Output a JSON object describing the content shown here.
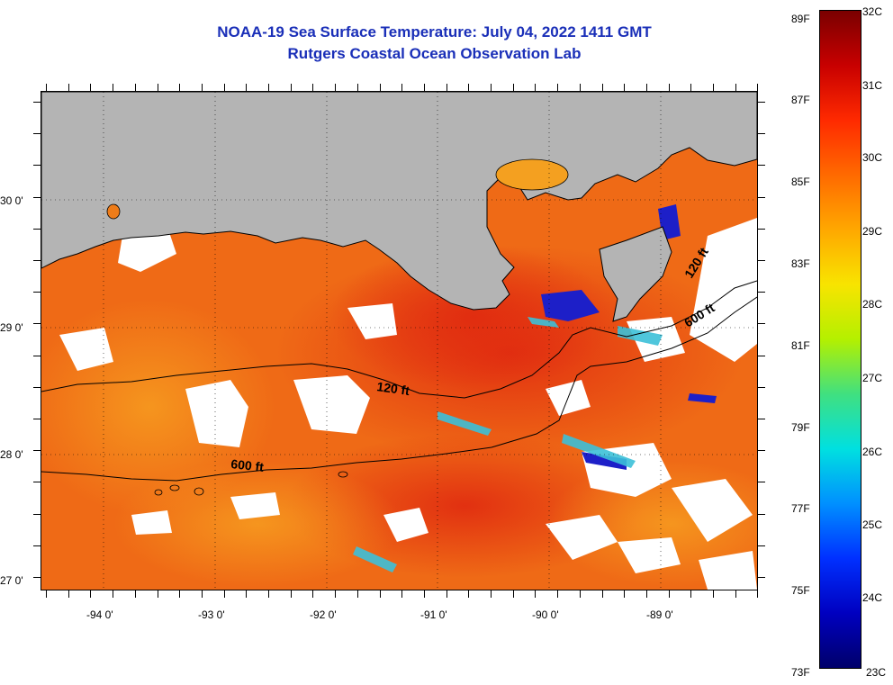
{
  "title": {
    "line1": "NOAA-19 Sea Surface Temperature:  July 04, 2022 1411 GMT",
    "line2": "Rutgers Coastal Ocean Observation Lab"
  },
  "map": {
    "lat_labels": [
      "30 0'",
      "29 0'",
      "28 0'",
      "27 0'"
    ],
    "lon_labels": [
      "-94 0'",
      "-93 0'",
      "-92 0'",
      "-91 0'",
      "-90 0'",
      "-89 0'"
    ],
    "contour_labels": [
      "120 ft",
      "600 ft",
      "120 ft",
      "600 ft"
    ],
    "colors": {
      "land": "#b4b4b4",
      "cloud": "#ffffff",
      "warm_water": "#f07a18",
      "hot_water": "#e23614",
      "cold_water": "#1d1fc8",
      "title": "#1a2fb8"
    }
  },
  "colorbar": {
    "fahrenheit": [
      "89F",
      "87F",
      "85F",
      "83F",
      "81F",
      "79F",
      "77F",
      "75F",
      "73F"
    ],
    "celsius": [
      "32C",
      "31C",
      "30C",
      "29C",
      "28C",
      "27C",
      "26C",
      "25C",
      "24C",
      "23C"
    ],
    "gradient": [
      "#7a0000",
      "#c80000",
      "#ff2a00",
      "#ff6a00",
      "#ffa800",
      "#f8e400",
      "#b4f000",
      "#40e080",
      "#00e0e0",
      "#0090ff",
      "#0030ff",
      "#0000c0",
      "#00006a"
    ]
  }
}
